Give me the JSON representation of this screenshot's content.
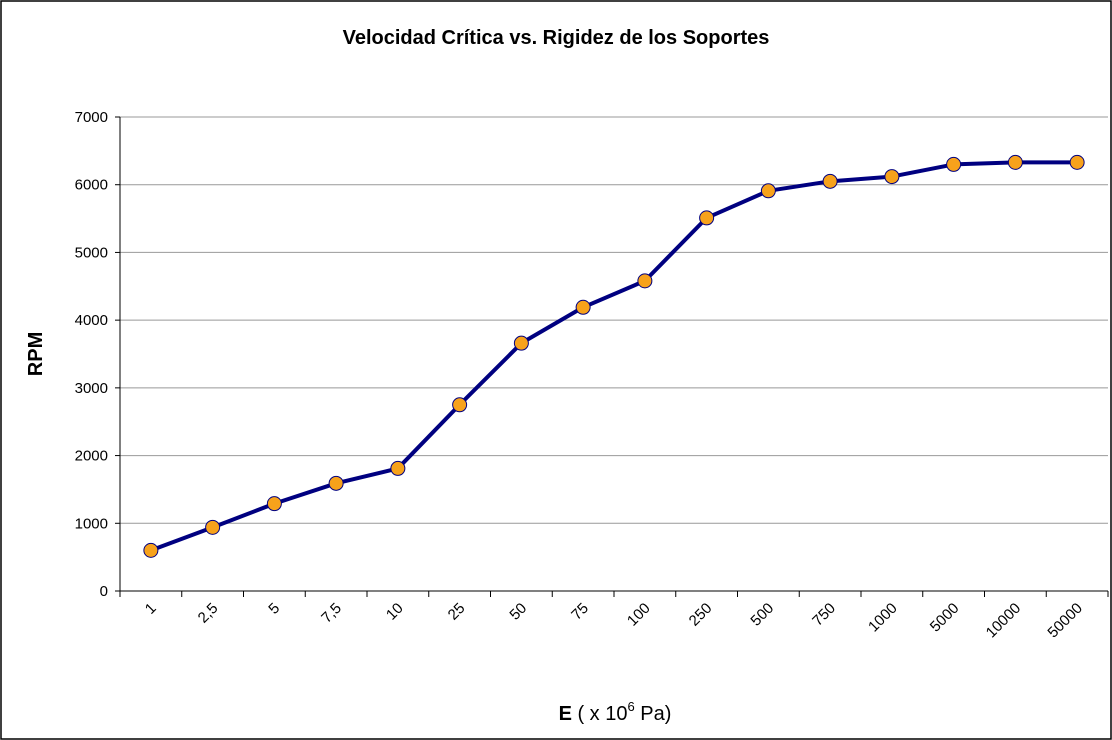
{
  "chart_data": {
    "type": "line",
    "title": "Velocidad Crítica vs. Rigidez de los Soportes",
    "ylabel": "RPM",
    "xlabel": {
      "bold": "E",
      "text": "( x 10",
      "sup": "6",
      "unit": "Pa)"
    },
    "categories": [
      "1",
      "2,5",
      "5",
      "7,5",
      "10",
      "25",
      "50",
      "75",
      "100",
      "250",
      "500",
      "750",
      "1000",
      "5000",
      "10000",
      "50000"
    ],
    "series": [
      {
        "name": "RPM",
        "color": "#000080",
        "marker_color": "#f7a21b",
        "values": [
          600,
          940,
          1290,
          1590,
          1810,
          2750,
          3660,
          4190,
          4580,
          5510,
          5910,
          6050,
          6120,
          6300,
          6330,
          6330
        ]
      }
    ],
    "ylim": [
      0,
      7000
    ],
    "yticks": [
      0,
      1000,
      2000,
      3000,
      4000,
      5000,
      6000,
      7000
    ],
    "grid": true
  }
}
